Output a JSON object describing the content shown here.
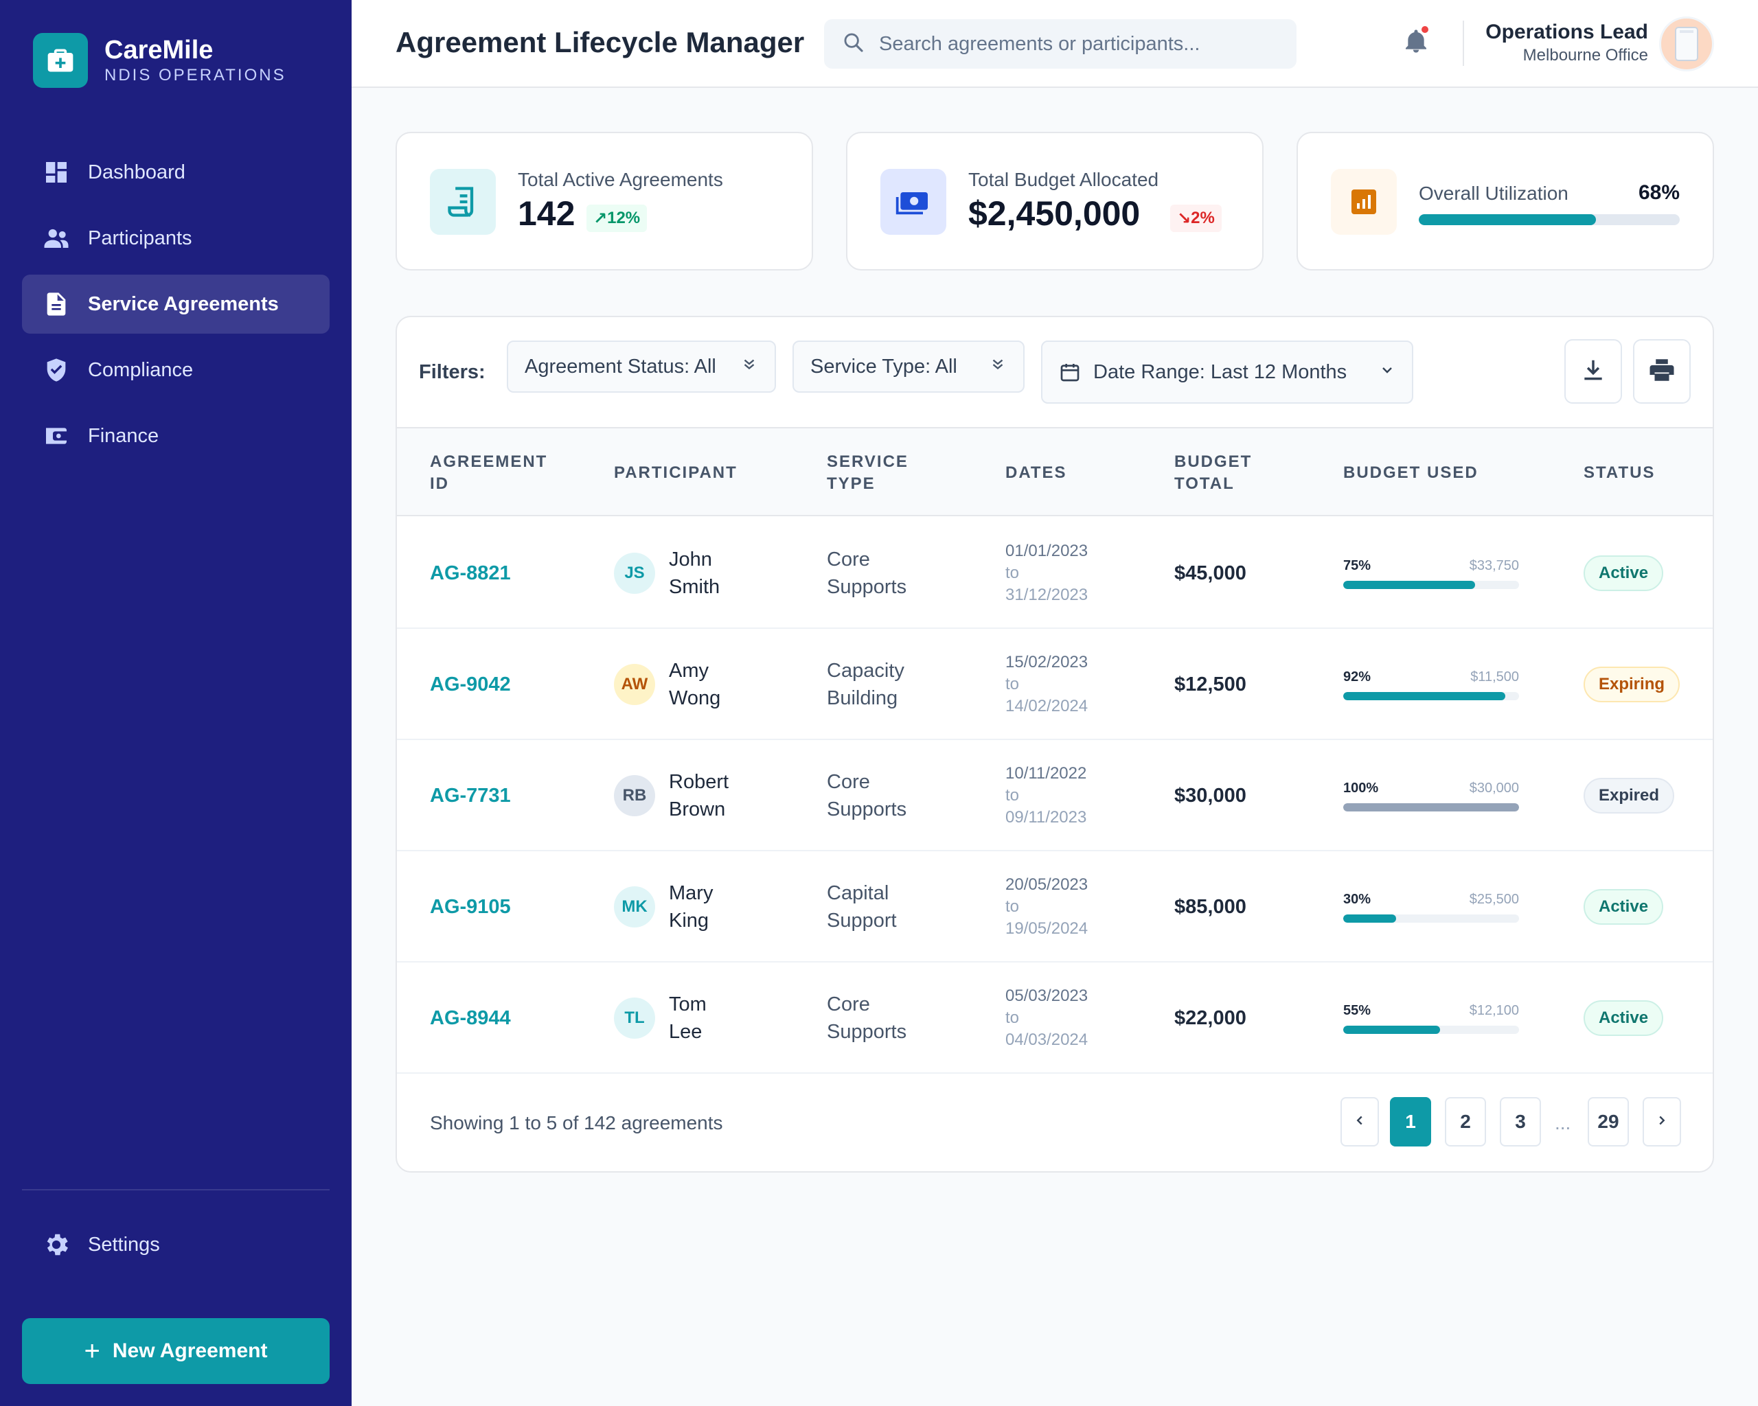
{
  "brand": {
    "name": "CareMile",
    "subtitle": "NDIS OPERATIONS"
  },
  "nav": {
    "items": [
      {
        "label": "Dashboard",
        "icon": "dashboard-icon"
      },
      {
        "label": "Participants",
        "icon": "users-icon"
      },
      {
        "label": "Service Agreements",
        "icon": "document-icon",
        "active": true
      },
      {
        "label": "Compliance",
        "icon": "shield-icon"
      },
      {
        "label": "Finance",
        "icon": "wallet-icon"
      }
    ],
    "settings": "Settings",
    "new_agreement": "New Agreement"
  },
  "header": {
    "title": "Agreement Lifecycle Manager",
    "search_placeholder": "Search agreements or participants...",
    "user_name": "Operations Lead",
    "user_office": "Melbourne Office"
  },
  "stats": {
    "agreements": {
      "label": "Total Active Agreements",
      "value": "142",
      "change": "12%",
      "trend": "up"
    },
    "budget": {
      "label": "Total Budget Allocated",
      "value": "$2,450,000",
      "change": "2%",
      "trend": "down"
    },
    "utilization": {
      "label": "Overall Utilization",
      "value": "68%",
      "fraction": 0.68
    }
  },
  "filters": {
    "label": "Filters:",
    "status": "Agreement Status: All",
    "service_type": "Service Type: All",
    "date_range": "Date Range: Last 12 Months"
  },
  "table": {
    "headers": {
      "id_1": "AGREEMENT",
      "id_2": "ID",
      "participant": "PARTICIPANT",
      "type_1": "SERVICE",
      "type_2": "TYPE",
      "dates": "DATES",
      "budget_1": "BUDGET",
      "budget_2": "TOTAL",
      "used": "BUDGET USED",
      "status": "STATUS"
    },
    "to_label": "to",
    "rows": [
      {
        "id": "AG-8821",
        "initials": "JS",
        "name": "John Smith",
        "type": "Core Supports",
        "start": "01/01/2023",
        "end": "31/12/2023",
        "budget": "$45,000",
        "pct": "75%",
        "fraction": 0.75,
        "used": "$33,750",
        "status": "Active",
        "status_key": "active"
      },
      {
        "id": "AG-9042",
        "initials": "AW",
        "name": "Amy Wong",
        "type": "Capacity Building",
        "start": "15/02/2023",
        "end": "14/02/2024",
        "budget": "$12,500",
        "pct": "92%",
        "fraction": 0.92,
        "used": "$11,500",
        "status": "Expiring",
        "status_key": "expiring"
      },
      {
        "id": "AG-7731",
        "initials": "RB",
        "name": "Robert Brown",
        "type": "Core Supports",
        "start": "10/11/2022",
        "end": "09/11/2023",
        "budget": "$30,000",
        "pct": "100%",
        "fraction": 1.0,
        "used": "$30,000",
        "status": "Expired",
        "status_key": "expired"
      },
      {
        "id": "AG-9105",
        "initials": "MK",
        "name": "Mary King",
        "type": "Capital Support",
        "start": "20/05/2023",
        "end": "19/05/2024",
        "budget": "$85,000",
        "pct": "30%",
        "fraction": 0.3,
        "used": "$25,500",
        "status": "Active",
        "status_key": "active"
      },
      {
        "id": "AG-8944",
        "initials": "TL",
        "name": "Tom Lee",
        "type": "Core Supports",
        "start": "05/03/2023",
        "end": "04/03/2024",
        "budget": "$22,000",
        "pct": "55%",
        "fraction": 0.55,
        "used": "$12,100",
        "status": "Active",
        "status_key": "active"
      }
    ]
  },
  "pagination": {
    "summary": "Showing 1 to 5 of 142 agreements",
    "pages": [
      "1",
      "2",
      "3"
    ],
    "ellipsis": "...",
    "last": "29",
    "current": "1"
  },
  "colors": {
    "sidebar": "#1e1f7f",
    "accent": "#0e9aa7",
    "expired_bar": "#94a3b8"
  }
}
